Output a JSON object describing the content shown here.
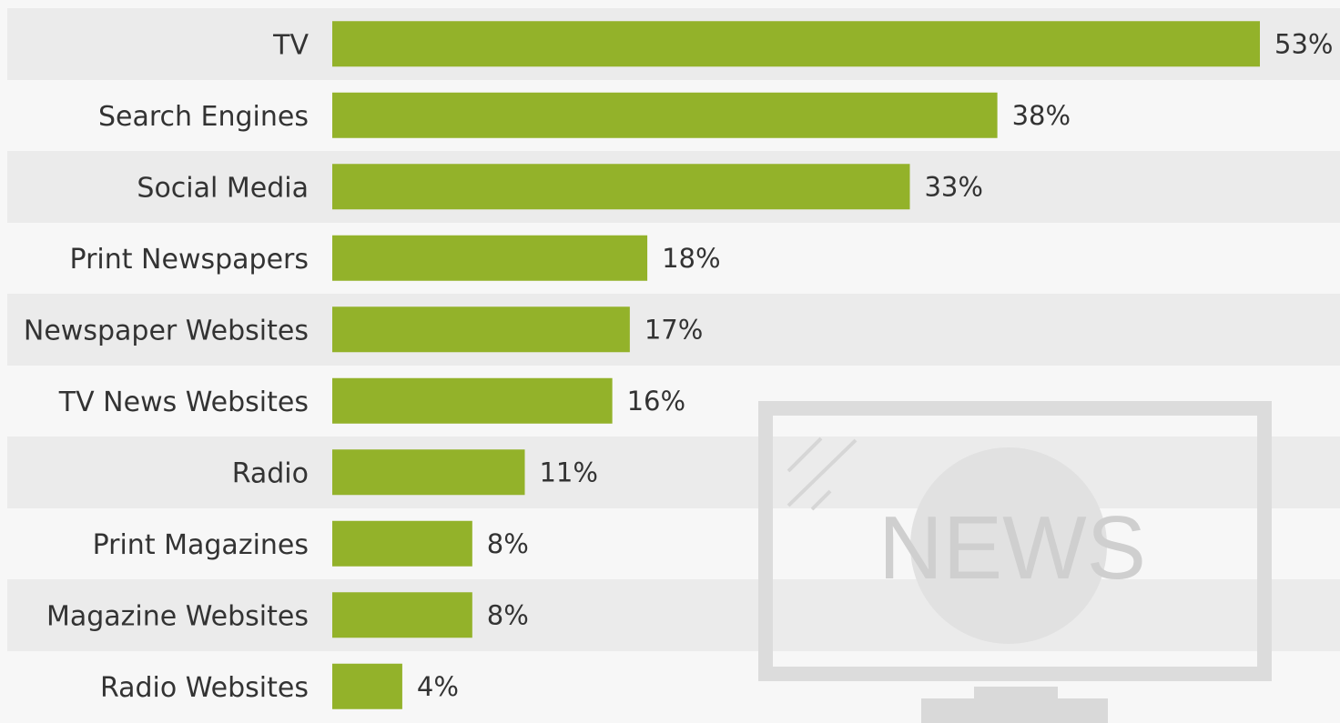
{
  "chart_data": {
    "type": "bar",
    "orientation": "horizontal",
    "categories": [
      "TV",
      "Search Engines",
      "Social Media",
      "Print Newspapers",
      "Newspaper Websites",
      "TV News Websites",
      "Radio",
      "Print Magazines",
      "Magazine Websites",
      "Radio Websites"
    ],
    "values": [
      53,
      38,
      33,
      18,
      17,
      16,
      11,
      8,
      8,
      4
    ],
    "value_labels": [
      "53%",
      "38%",
      "33%",
      "18%",
      "17%",
      "16%",
      "11%",
      "8%",
      "8%",
      "4%"
    ],
    "unit": "%",
    "xlim": [
      0,
      53
    ],
    "grid": false,
    "bar_color": "#93b22a",
    "row_shade_color": "#ebebeb"
  },
  "illustration": {
    "screen_text": "NEWS",
    "icon": "tv-news-icon"
  }
}
